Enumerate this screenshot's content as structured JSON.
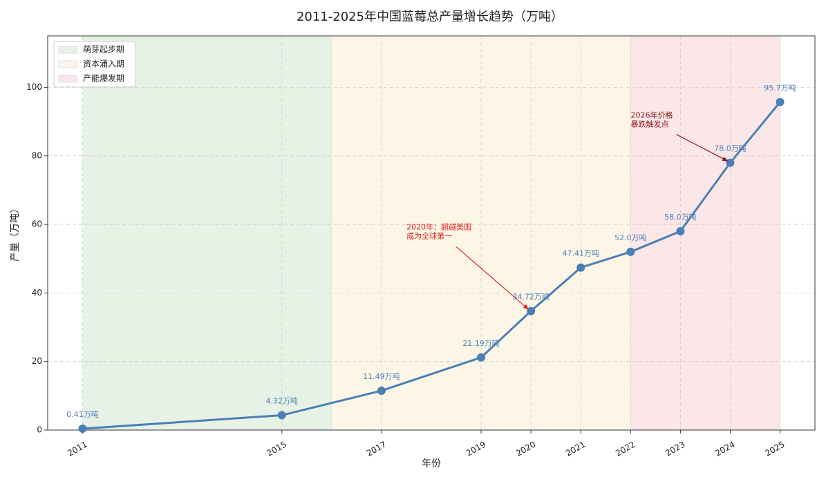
{
  "chart_data": {
    "type": "line",
    "title": "2011-2025年中国蓝莓总产量增长趋势（万吨）",
    "x_label": "年份",
    "y_label": "产量（万吨）",
    "series": [
      {
        "name": "产量",
        "color": "#4a7fb5",
        "x": [
          2011,
          2015,
          2017,
          2019,
          2020,
          2021,
          2022,
          2023,
          2024,
          2025
        ],
        "values": [
          0.41,
          4.32,
          11.49,
          21.19,
          34.72,
          47.41,
          52.0,
          58.0,
          78.0,
          95.7
        ],
        "value_labels": [
          "0.41万吨",
          "4.32万吨",
          "11.49万吨",
          "21.19万吨",
          "34.72万吨",
          "47.41万吨",
          "52.0万吨",
          "58.0万吨",
          "78.0万吨",
          "95.7万吨"
        ]
      }
    ],
    "regions": [
      {
        "name": "萌芽起步期",
        "start": 2011,
        "end": 2016,
        "color": "#e6f2e6"
      },
      {
        "name": "资本涌入期",
        "start": 2016,
        "end": 2022,
        "color": "#fdf6e7"
      },
      {
        "name": "产能爆发期",
        "start": 2022,
        "end": 2025,
        "color": "#fbe6e8"
      }
    ],
    "annotations": [
      {
        "text": [
          "2020年：超越美国",
          "成为全球第一"
        ],
        "x": 2020,
        "y": 34.72,
        "color": "#e02020"
      },
      {
        "text": [
          "2026年价格",
          "暴跌触发点"
        ],
        "x": 2024,
        "y": 78.0,
        "color": "#8b1a1a"
      }
    ],
    "xlim": [
      2010.3,
      2025.7
    ],
    "ylim": [
      0,
      115
    ],
    "xticks": [
      2011,
      2015,
      2017,
      2019,
      2020,
      2021,
      2022,
      2023,
      2024,
      2025
    ],
    "yticks": [
      0,
      20,
      40,
      60,
      80,
      100
    ],
    "grid": true,
    "legend": "upper left"
  }
}
